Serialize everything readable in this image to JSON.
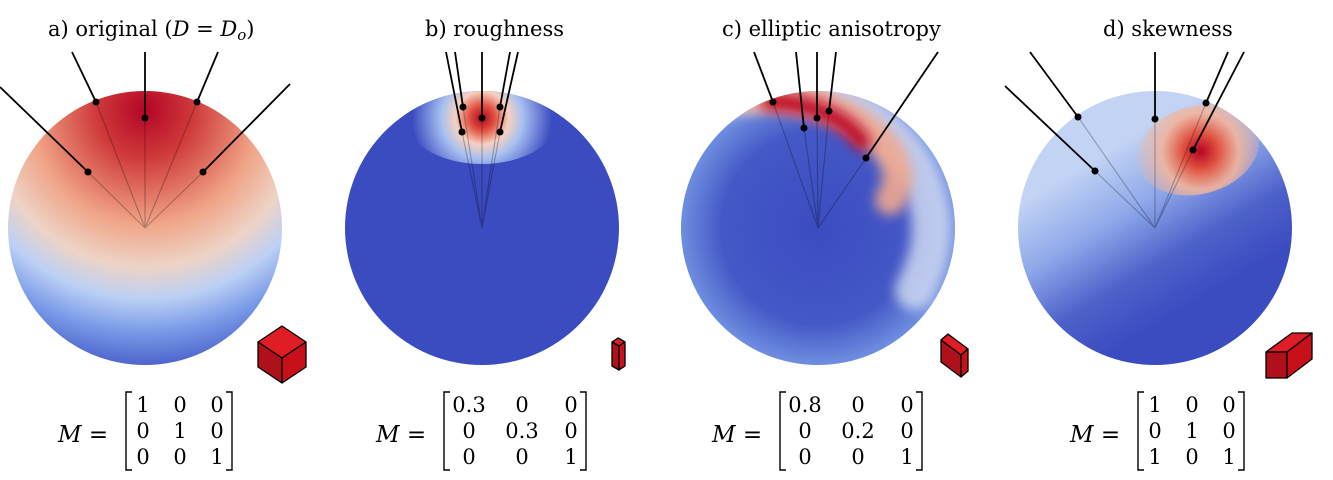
{
  "colors": {
    "low": "#3b4cc0",
    "mid": "#dddddd",
    "high": "#b40426",
    "box": "#c8101a",
    "ray": "#000000"
  },
  "panels": [
    {
      "id": "original",
      "title_pre": "a) original (",
      "title_math": "D = D",
      "title_sub": "o",
      "title_post": ")",
      "distribution": "broad lobe, centered on normal",
      "matrix_label": "M =",
      "matrix": [
        [
          "1",
          "0",
          "0"
        ],
        [
          "0",
          "1",
          "0"
        ],
        [
          "0",
          "0",
          "1"
        ]
      ]
    },
    {
      "id": "roughness",
      "title_pre": "b) roughness",
      "distribution": "narrow lobe, centered on normal",
      "matrix_label": "M =",
      "matrix": [
        [
          "0.3",
          "0",
          "0"
        ],
        [
          "0",
          "0.3",
          "0"
        ],
        [
          "0",
          "0",
          "1"
        ]
      ]
    },
    {
      "id": "anisotropy",
      "title_pre": "c) elliptic anisotropy",
      "distribution": "elongated elliptic lobe",
      "matrix_label": "M =",
      "matrix": [
        [
          "0.8",
          "0",
          "0"
        ],
        [
          "0",
          "0.2",
          "0"
        ],
        [
          "0",
          "0",
          "1"
        ]
      ]
    },
    {
      "id": "skewness",
      "title_pre": "d) skewness",
      "distribution": "lobe shifted off normal",
      "matrix_label": "M =",
      "matrix": [
        [
          "1",
          "0",
          "0"
        ],
        [
          "0",
          "1",
          "0"
        ],
        [
          "1",
          "0",
          "1"
        ]
      ]
    }
  ]
}
